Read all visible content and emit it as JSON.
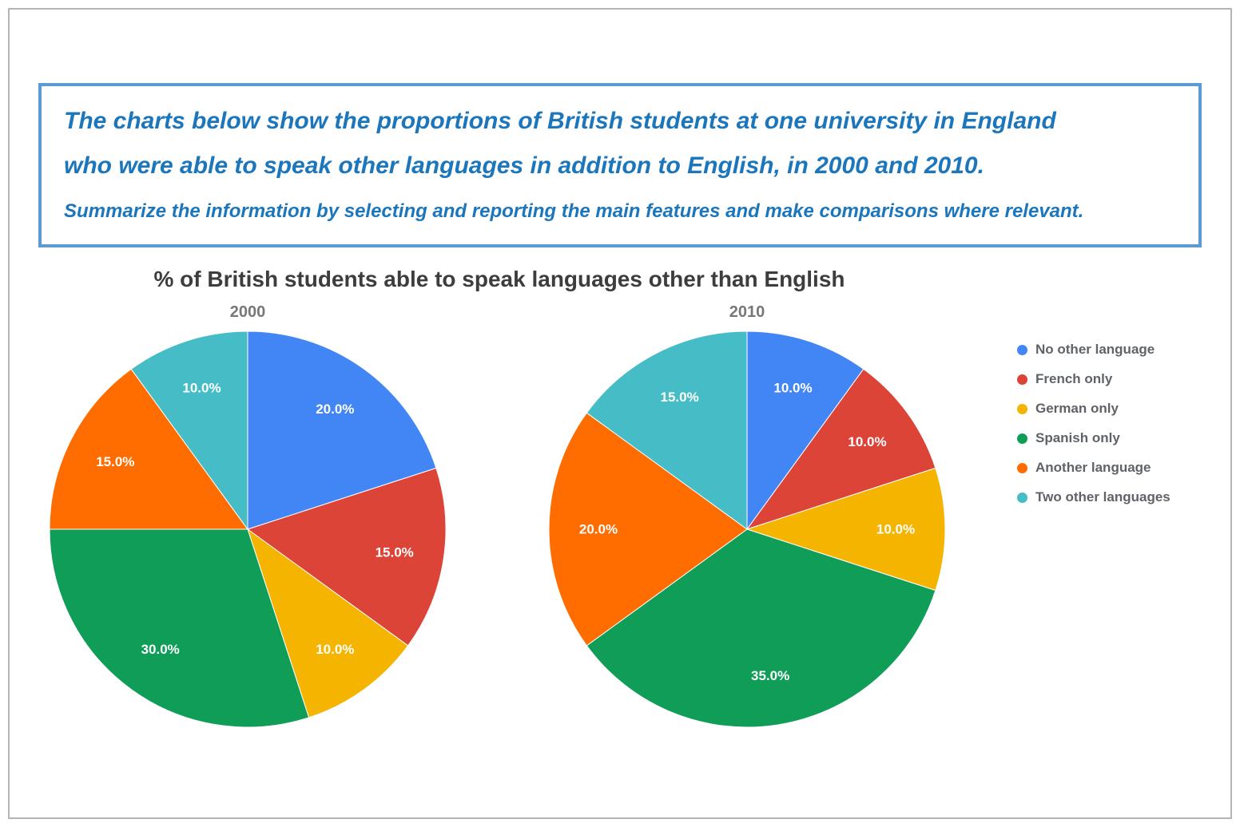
{
  "task": {
    "heading_line1": "The charts below show the proportions of British students at one university in England",
    "heading_line2": "who were able to speak other languages in addition to English, in 2000 and 2010.",
    "instruction": "Summarize the information by selecting and reporting the main features and make comparisons where relevant."
  },
  "chart_data": {
    "type": "pie",
    "title": "% of British students able to speak languages other than English",
    "legend_position": "right",
    "categories": [
      "No other language",
      "French only",
      "German only",
      "Spanish only",
      "Another language",
      "Two other languages"
    ],
    "colors": [
      "#4285f4",
      "#db4437",
      "#f4b400",
      "#0f9d58",
      "#ff6d00",
      "#46bdc6"
    ],
    "charts": [
      {
        "label": "2000",
        "values": [
          20.0,
          15.0,
          10.0,
          30.0,
          15.0,
          10.0
        ],
        "data_labels": [
          "20.0%",
          "15.0%",
          "10.0%",
          "30.0%",
          "15.0%",
          "10.0%"
        ]
      },
      {
        "label": "2010",
        "values": [
          10.0,
          10.0,
          10.0,
          35.0,
          20.0,
          15.0
        ],
        "data_labels": [
          "10.0%",
          "10.0%",
          "10.0%",
          "35.0%",
          "20.0%",
          "15.0%"
        ]
      }
    ]
  }
}
